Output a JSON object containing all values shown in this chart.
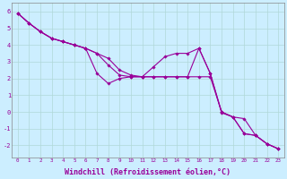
{
  "background_color": "#cceeff",
  "line_color": "#990099",
  "marker": "D",
  "markersize": 1.8,
  "linewidth": 0.8,
  "xlabel": "Windchill (Refroidissement éolien,°C)",
  "xlabel_fontsize": 6.0,
  "ytick_labels": [
    "6",
    "5",
    "4",
    "3",
    "2",
    "1",
    "0",
    "-1",
    "-2"
  ],
  "ytick_values": [
    6,
    5,
    4,
    3,
    2,
    1,
    0,
    -1,
    -2
  ],
  "xtick_values": [
    0,
    1,
    2,
    3,
    4,
    5,
    6,
    7,
    8,
    9,
    10,
    11,
    12,
    13,
    14,
    15,
    16,
    17,
    18,
    19,
    20,
    21,
    22,
    23
  ],
  "ylim": [
    -2.7,
    6.5
  ],
  "xlim": [
    -0.5,
    23.5
  ],
  "series": [
    {
      "x": [
        0,
        1,
        2,
        3,
        4,
        5,
        6,
        7,
        8,
        9,
        10,
        11,
        12,
        13,
        14,
        15,
        16,
        17,
        18,
        19,
        20,
        21,
        22,
        23
      ],
      "y": [
        5.9,
        5.3,
        4.8,
        4.4,
        4.2,
        4.0,
        3.8,
        3.5,
        3.2,
        2.5,
        2.2,
        2.1,
        2.1,
        2.1,
        2.1,
        2.1,
        2.1,
        2.1,
        0.0,
        -0.3,
        -1.3,
        -1.4,
        -1.9,
        -2.2
      ]
    },
    {
      "x": [
        0,
        1,
        2,
        3,
        4,
        5,
        6,
        7,
        8,
        9,
        10,
        11,
        12,
        13,
        14,
        15,
        16,
        17,
        18,
        19,
        20,
        21,
        22,
        23
      ],
      "y": [
        5.9,
        5.3,
        4.8,
        4.4,
        4.2,
        4.0,
        3.8,
        2.3,
        1.7,
        2.0,
        2.1,
        2.1,
        2.7,
        3.3,
        3.5,
        3.5,
        3.8,
        2.3,
        0.0,
        -0.3,
        -0.4,
        -1.4,
        -1.9,
        -2.2
      ]
    },
    {
      "x": [
        0,
        1,
        2,
        3,
        4,
        5,
        6,
        7,
        8,
        9,
        10,
        11,
        12,
        13,
        14,
        15,
        16,
        17,
        18,
        19,
        20,
        21,
        22,
        23
      ],
      "y": [
        5.9,
        5.3,
        4.8,
        4.4,
        4.2,
        4.0,
        3.8,
        3.5,
        2.8,
        2.2,
        2.1,
        2.1,
        2.1,
        2.1,
        2.1,
        2.1,
        3.8,
        2.3,
        -0.05,
        -0.3,
        -1.3,
        -1.4,
        -1.9,
        -2.2
      ]
    }
  ]
}
